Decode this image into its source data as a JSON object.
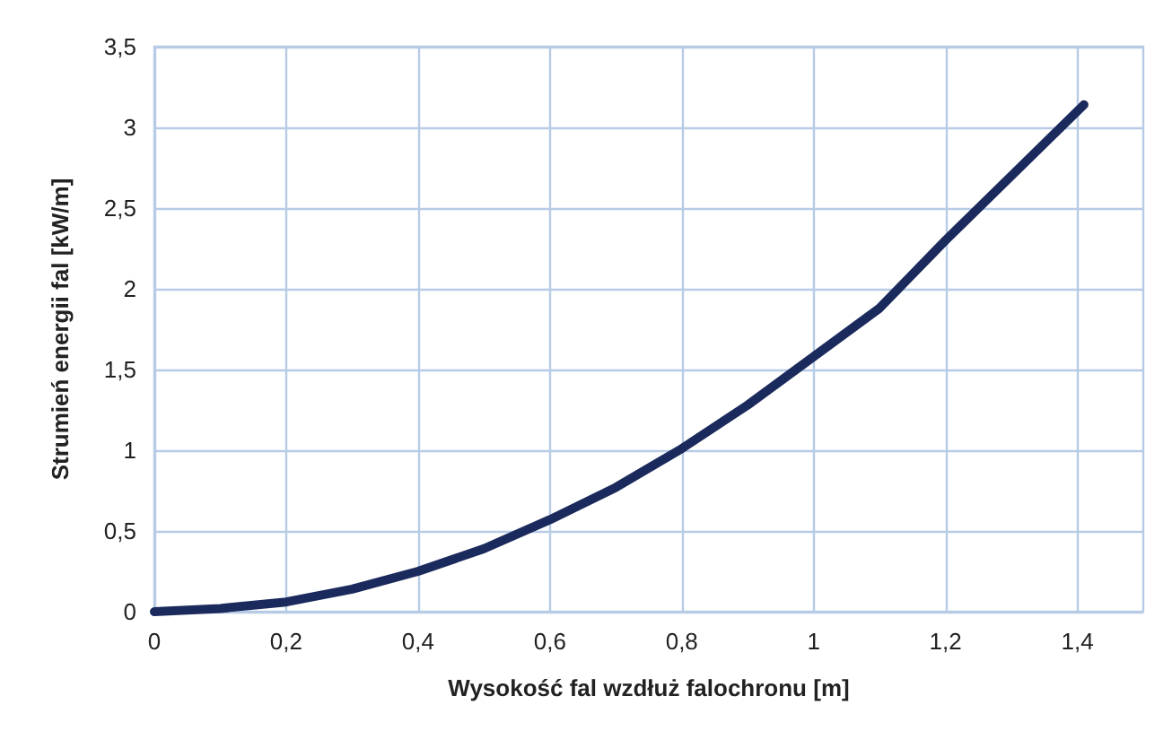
{
  "chart_data": {
    "type": "line",
    "xlabel": "Wysokość fal wzdłuż falochronu [m]",
    "ylabel": "Strumień energii fal [kW/m]",
    "x": [
      0,
      0.1,
      0.2,
      0.3,
      0.4,
      0.5,
      0.6,
      0.7,
      0.8,
      0.9,
      1.0,
      1.1,
      1.2,
      1.3,
      1.41
    ],
    "series": [
      {
        "color": "#1b2a5c",
        "values": [
          0,
          0.02,
          0.06,
          0.14,
          0.25,
          0.39,
          0.57,
          0.77,
          1.01,
          1.28,
          1.58,
          1.88,
          2.3,
          2.7,
          3.14
        ]
      }
    ],
    "xlim": [
      0,
      1.5
    ],
    "xticks": [
      0,
      {
        "value": 0.2,
        "label": "0,2"
      },
      {
        "value": 0.4,
        "label": "0,4"
      },
      {
        "value": 0.6,
        "label": "0,6"
      },
      {
        "value": 0.8,
        "label": "0,8"
      },
      1,
      {
        "value": 1.2,
        "label": "1,2"
      },
      {
        "value": 1.4,
        "label": "1,4"
      }
    ],
    "ylim": [
      0,
      3.5
    ],
    "yticks": [
      0,
      {
        "value": 0.5,
        "label": "0,5"
      },
      1,
      {
        "value": 1.5,
        "label": "1,5"
      },
      2,
      {
        "value": 2.5,
        "label": "2,5"
      },
      3,
      {
        "value": 3.5,
        "label": "3,5"
      }
    ],
    "grid": true,
    "marker": "none",
    "line_style": "solid"
  }
}
